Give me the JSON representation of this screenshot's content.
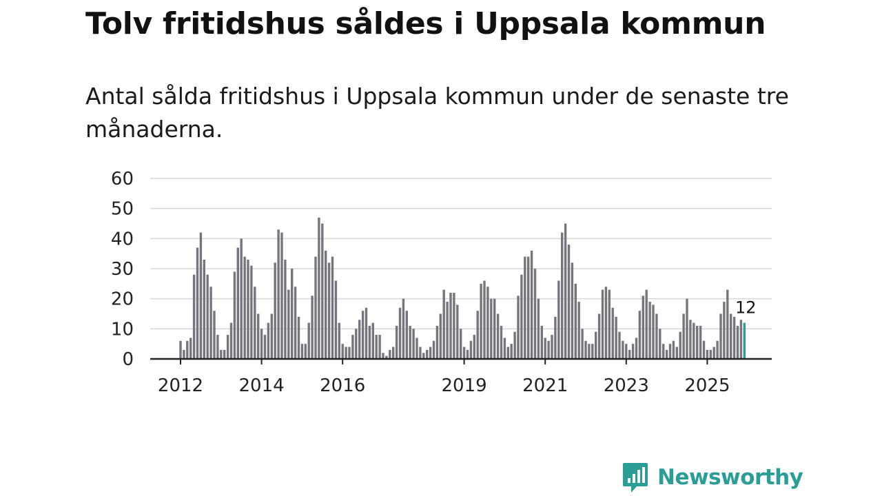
{
  "title": "Tolv fritidshus såldes i Uppsala kommun",
  "subtitle": "Antal sålda fritidshus i Uppsala kommun under de senaste tre månaderna.",
  "brand": {
    "name": "Newsworthy",
    "color": "#2a9d97"
  },
  "chart_data": {
    "type": "bar",
    "series": [
      {
        "values": [
          6,
          3,
          6,
          7,
          28,
          37,
          42,
          33,
          28,
          24,
          16,
          8,
          3,
          3,
          8,
          12,
          29,
          37,
          40,
          34,
          33,
          31,
          24,
          15,
          10,
          8,
          12,
          15,
          32,
          43,
          42,
          33,
          23,
          30,
          24,
          14,
          5,
          5,
          12,
          21,
          34,
          47,
          45,
          36,
          32,
          34,
          26,
          12,
          5,
          4,
          4,
          8,
          10,
          13,
          16,
          17,
          11,
          12,
          8,
          8,
          2,
          1,
          3,
          4,
          11,
          17,
          20,
          16,
          11,
          10,
          7,
          4,
          2,
          3,
          4,
          6,
          11,
          15,
          23,
          19,
          22,
          22,
          18,
          10,
          4,
          3,
          6,
          8,
          16,
          25,
          26,
          24,
          20,
          20,
          15,
          11,
          7,
          4,
          5,
          9,
          21,
          28,
          34,
          34,
          36,
          30,
          20,
          11,
          7,
          6,
          8,
          14,
          26,
          42,
          45,
          38,
          32,
          25,
          19,
          10,
          6,
          5,
          5,
          9,
          15,
          23,
          24,
          23,
          17,
          14,
          9,
          6,
          5,
          3,
          5,
          7,
          16,
          21,
          23,
          19,
          18,
          15,
          10,
          5,
          3,
          5,
          6,
          4,
          9,
          15,
          20,
          13,
          12,
          11,
          11,
          6,
          3,
          3,
          4,
          6,
          15,
          19,
          23,
          15,
          14,
          11,
          13,
          12
        ]
      }
    ],
    "x_tick_labels": [
      "2012",
      "2014",
      "2016",
      "2019",
      "2021",
      "2023",
      "2025"
    ],
    "x_tick_indices": [
      0,
      24,
      48,
      84,
      108,
      132,
      156
    ],
    "y_ticks": [
      0,
      10,
      20,
      30,
      40,
      50,
      60
    ],
    "ylim": [
      0,
      60
    ],
    "last_value_label": "12",
    "bar_color": "#76757d",
    "highlight_color": "#2a9d97",
    "grid_color": "#d6d6d6",
    "axis_color": "#222222",
    "grid": true
  }
}
